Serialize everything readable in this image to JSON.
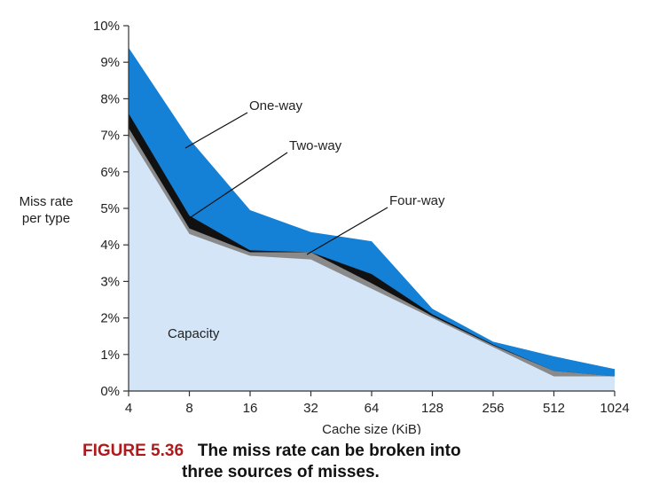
{
  "chart_data": {
    "type": "area",
    "x": [
      "4",
      "8",
      "16",
      "32",
      "64",
      "128",
      "256",
      "512",
      "1024"
    ],
    "xlabel": "Cache size (KiB)",
    "ylabel": [
      "Miss rate",
      "per type"
    ],
    "ylim": [
      0,
      10
    ],
    "yticks": [
      "0%",
      "1%",
      "2%",
      "3%",
      "4%",
      "5%",
      "6%",
      "7%",
      "8%",
      "9%",
      "10%"
    ],
    "series": [
      {
        "name": "Capacity",
        "color": "#d3e5f7",
        "values": [
          7.0,
          4.3,
          3.7,
          3.6,
          2.8,
          2.0,
          1.2,
          0.4,
          0.4
        ]
      },
      {
        "name": "Four-way",
        "color": "#8a8a8a",
        "values": [
          7.2,
          4.45,
          3.8,
          3.8,
          2.95,
          2.05,
          1.25,
          0.55,
          0.4
        ]
      },
      {
        "name": "Two-way",
        "color": "#111111",
        "values": [
          7.6,
          4.8,
          3.85,
          3.8,
          3.2,
          2.1,
          1.27,
          0.55,
          0.4
        ]
      },
      {
        "name": "One-way",
        "color": "#1480d6",
        "values": [
          9.4,
          6.9,
          4.95,
          4.35,
          4.1,
          2.25,
          1.35,
          0.95,
          0.6
        ]
      }
    ],
    "grid": false,
    "legend": "inline labels"
  },
  "caption": {
    "figure": "FIGURE 5.36",
    "line1": "The miss rate can be broken into",
    "line2": "three sources of misses."
  }
}
